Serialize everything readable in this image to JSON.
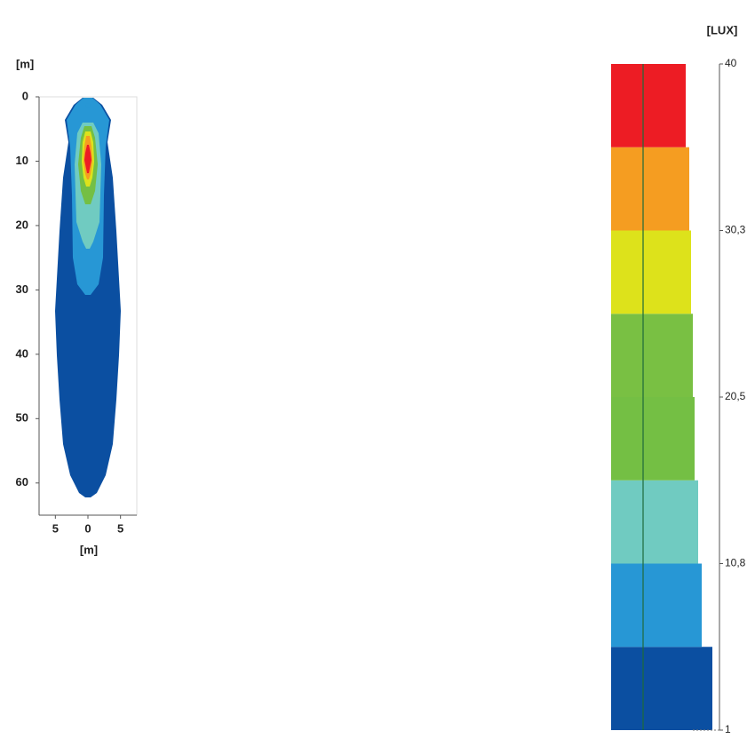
{
  "chart_data": [
    {
      "type": "contour",
      "x_label": "[m]",
      "y_label": "[m]",
      "xlim": [
        -7.5,
        7.5
      ],
      "ylim": [
        0,
        65
      ],
      "y_inverted": true,
      "xticks": [
        {
          "value": -5,
          "label": "5"
        },
        0,
        5
      ],
      "yticks": [
        0,
        10,
        20,
        30,
        40,
        50,
        60
      ]
    },
    {
      "type": "colorbar",
      "unit_label": "[LUX]",
      "levels": [
        1,
        5.875,
        10.75,
        15.625,
        20.5,
        25.375,
        30.25,
        35.125,
        40
      ],
      "colors": [
        "#0b4fa1",
        "#2797d5",
        "#70cbc1",
        "#74bf44",
        "#79c043",
        "#dde21b",
        "#f59d21",
        "#ed1c24"
      ],
      "ylim": [
        1,
        40
      ],
      "yticks": [
        {
          "value": 40,
          "label": "40"
        },
        {
          "value": 30.25,
          "label": "30,3"
        },
        {
          "value": 20.5,
          "label": "20,5"
        },
        {
          "value": 10.75,
          "label": "10,8"
        },
        {
          "value": 1,
          "label": "1"
        }
      ]
    }
  ]
}
